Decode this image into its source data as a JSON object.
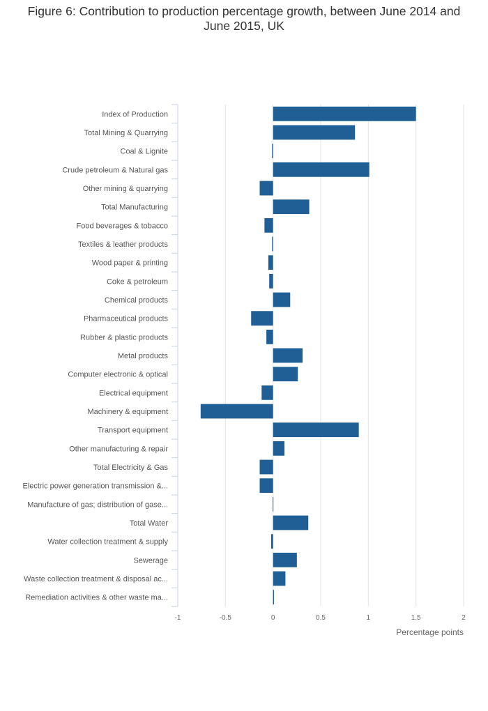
{
  "chart_data": {
    "type": "bar",
    "orientation": "horizontal",
    "title": "Figure 6: Contribution to production percentage growth, between June 2014 and June 2015, UK",
    "xlabel": "Percentage points",
    "ylabel": "",
    "xlim": [
      -1,
      2
    ],
    "xticks": [
      -1,
      -0.5,
      0,
      0.5,
      1,
      1.5,
      2
    ],
    "xtick_labels": [
      "-1",
      "-0.5",
      "0",
      "0.5",
      "1",
      "1.5",
      "2"
    ],
    "grid": true,
    "bar_color": "#1f5f96",
    "categories": [
      "Index of Production",
      "Total Mining & Quarrying",
      "Coal & Lignite",
      "Crude petroleum & Natural gas",
      "Other mining & quarrying",
      "Total Manufacturing",
      "Food beverages & tobacco",
      "Textiles & leather products",
      "Wood paper & printing",
      "Coke & petroleum",
      "Chemical products",
      "Pharmaceutical products",
      "Rubber & plastic products",
      "Metal products",
      "Computer electronic & optical",
      "Electrical equipment",
      "Machinery & equipment",
      "Transport equipment",
      "Other manufacturing & repair",
      "Total Electricity & Gas",
      "Electric power generation transmission &...",
      "Manufacture of gas; distribution of gase...",
      "Total Water",
      "Water collection treatment & supply",
      "Sewerage",
      "Waste collection treatment & disposal ac...",
      "Remediation activities & other waste ma..."
    ],
    "values": [
      1.5,
      0.86,
      -0.01,
      1.01,
      -0.14,
      0.38,
      -0.09,
      -0.01,
      -0.05,
      -0.04,
      0.18,
      -0.23,
      -0.07,
      0.31,
      0.26,
      -0.12,
      -0.76,
      0.9,
      0.12,
      -0.14,
      -0.14,
      0.0,
      0.37,
      -0.02,
      0.25,
      0.13,
      0.01
    ]
  }
}
